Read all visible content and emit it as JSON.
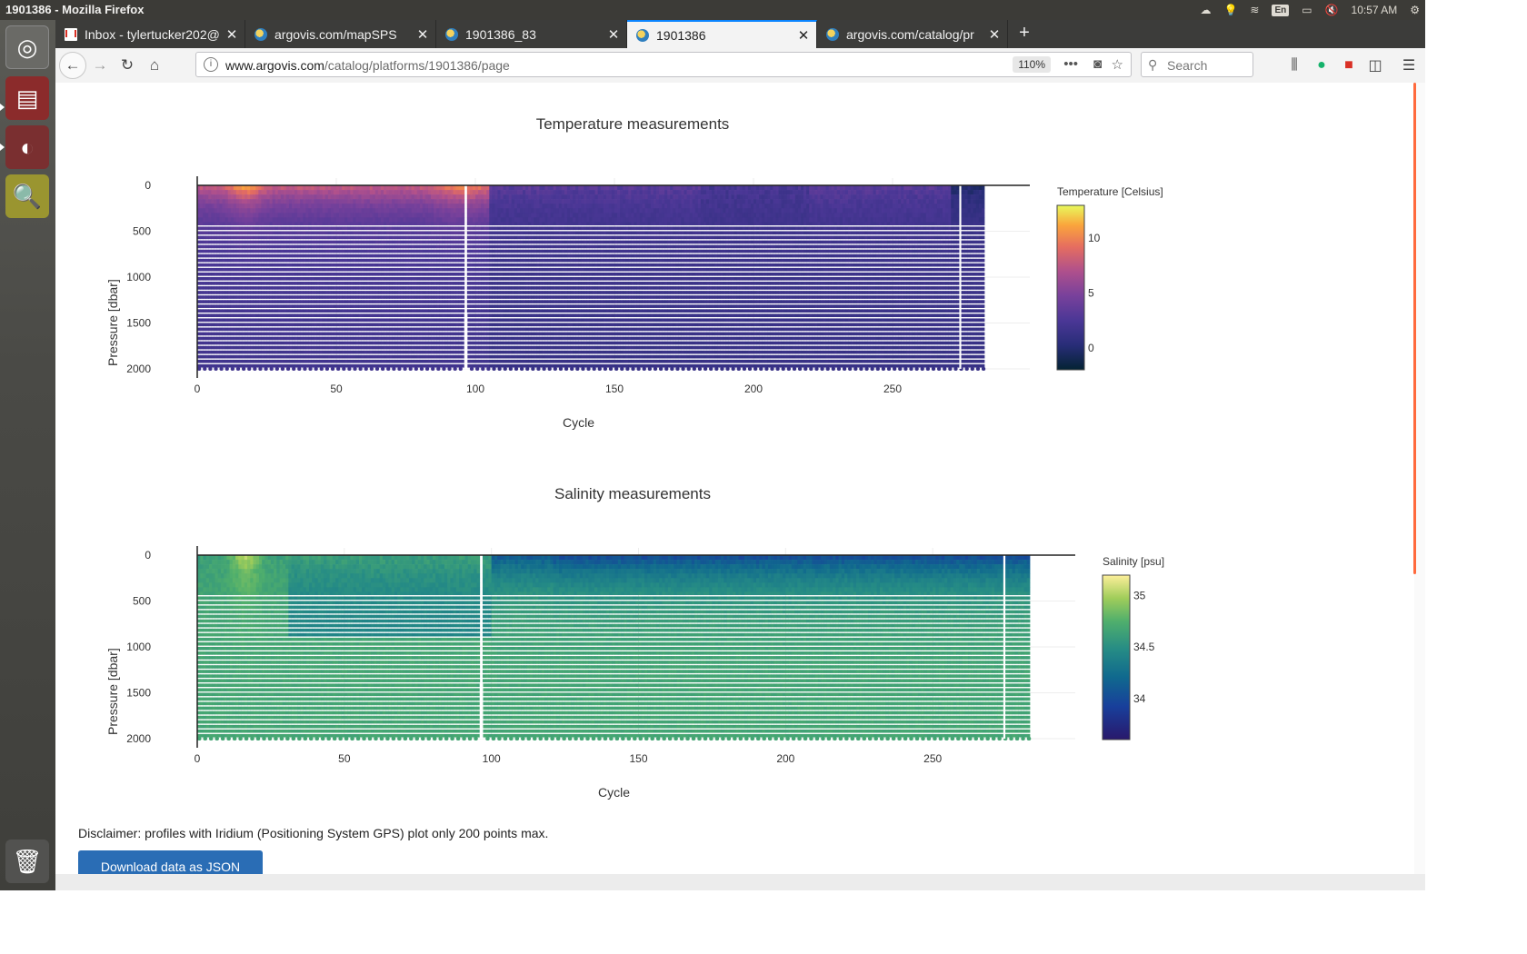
{
  "window": {
    "title": "1901386 - Mozilla Firefox"
  },
  "system_tray": {
    "lang": "En",
    "clock": "10:57 AM"
  },
  "tabs": [
    {
      "label": "Inbox - tylertucker202@",
      "favicon": "gmail-icon",
      "active": false
    },
    {
      "label": "argovis.com/mapSPS",
      "favicon": "globe-icon",
      "active": false
    },
    {
      "label": "1901386_83",
      "favicon": "globe-icon",
      "active": false
    },
    {
      "label": "1901386",
      "favicon": "globe-icon",
      "active": true
    },
    {
      "label": "argovis.com/catalog/pr",
      "favicon": "globe-icon",
      "active": false
    }
  ],
  "navbar": {
    "url_host": "www.argovis.com",
    "url_path": "/catalog/platforms/1901386/page",
    "zoom": "110%",
    "search_placeholder": "Search"
  },
  "charts": {
    "temperature": {
      "title": "Temperature measurements",
      "xlabel": "Cycle",
      "ylabel": "Pressure [dbar]",
      "colorbar_title": "Temperature [Celsius]"
    },
    "salinity": {
      "title": "Salinity measurements",
      "xlabel": "Cycle",
      "ylabel": "Pressure [dbar]",
      "colorbar_title": "Salinity [psu]"
    }
  },
  "chart_data": [
    {
      "type": "heatmap",
      "title": "Temperature measurements",
      "xlabel": "Cycle",
      "ylabel": "Pressure [dbar]",
      "xlim": [
        0,
        300
      ],
      "ylim": [
        2000,
        0
      ],
      "x_ticks": [
        0,
        50,
        100,
        150,
        200,
        250
      ],
      "y_ticks": [
        0,
        500,
        1000,
        1500,
        2000
      ],
      "colorbar": {
        "title": "Temperature [Celsius]",
        "ticks": [
          0,
          5,
          10
        ],
        "range": [
          -2,
          13
        ],
        "colorscale": "thermal"
      },
      "cycle_range": [
        0,
        282
      ],
      "pressure_range": [
        0,
        2000
      ],
      "description_values": {
        "warm_surface_cycles": [
          0,
          105
        ],
        "surface_temp_max": 12,
        "deep_temp": 1.5
      }
    },
    {
      "type": "heatmap",
      "title": "Salinity measurements",
      "xlabel": "Cycle",
      "ylabel": "Pressure [dbar]",
      "xlim": [
        0,
        300
      ],
      "ylim": [
        2000,
        0
      ],
      "x_ticks": [
        0,
        50,
        100,
        150,
        200,
        250
      ],
      "y_ticks": [
        0,
        500,
        1000,
        1500,
        2000
      ],
      "colorbar": {
        "title": "Salinity [psu]",
        "ticks": [
          34,
          34.5,
          35
        ],
        "range": [
          33.6,
          35.2
        ],
        "colorscale": "haline"
      },
      "cycle_range": [
        0,
        282
      ],
      "pressure_range": [
        0,
        2000
      ]
    }
  ],
  "page": {
    "disclaimer": "Disclaimer: profiles with Iridium (Positioning System GPS) plot only 200 points max.",
    "download_label": "Download data as JSON"
  }
}
